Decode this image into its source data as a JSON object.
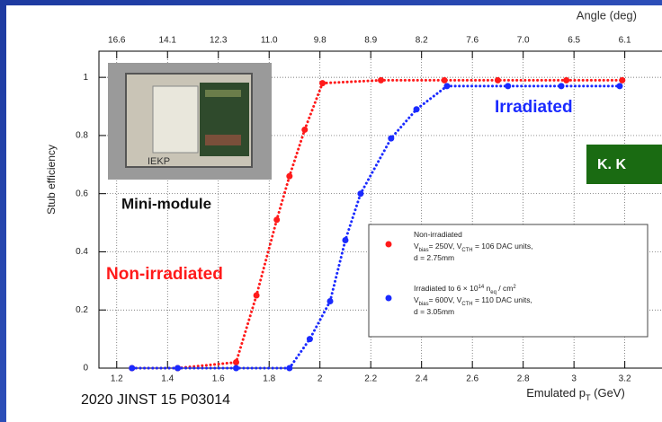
{
  "chart_data": {
    "type": "line",
    "line_style": "dotted",
    "x_label": {
      "segments": [
        {
          "text": "Emulated p"
        },
        {
          "sub": "T"
        },
        {
          "text": " (GeV)"
        }
      ]
    },
    "y_label": "Stub efficiency",
    "x2_label": "Angle (deg)",
    "xlim": [
      1.13,
      3.35
    ],
    "ylim": [
      0,
      1.09
    ],
    "xticks": [
      1.2,
      1.4,
      1.6,
      1.8,
      2,
      2.2,
      2.4,
      2.6,
      2.8,
      3,
      3.2
    ],
    "x2ticks": [
      16.6,
      14.1,
      12.3,
      {
        "value": 11,
        "label": "11.0"
      },
      9.8,
      8.9,
      8.2,
      7.6,
      {
        "value": 7,
        "label": "7.0"
      },
      6.5,
      6.1
    ],
    "yticks": [
      0,
      0.2,
      0.4,
      0.6,
      0.8,
      1
    ],
    "grid": true,
    "series": [
      {
        "name": "Non-irradiated",
        "color": "#ff1a1a",
        "x": [
          1.26,
          1.44,
          1.67,
          1.75,
          1.83,
          1.88,
          1.94,
          2.01,
          2.24,
          2.49,
          2.7,
          2.97,
          3.19
        ],
        "values": [
          0,
          0,
          0.02,
          0.25,
          0.51,
          0.66,
          0.82,
          0.98,
          0.99,
          0.99,
          0.99,
          0.99,
          0.99
        ]
      },
      {
        "name": "Irradiated",
        "color": "#1a2aff",
        "x": [
          1.26,
          1.44,
          1.67,
          1.88,
          1.96,
          2.04,
          2.1,
          2.16,
          2.28,
          2.38,
          2.5,
          2.74,
          2.95,
          3.18
        ],
        "values": [
          0,
          0,
          0,
          0,
          0.1,
          0.23,
          0.44,
          0.6,
          0.79,
          0.89,
          0.97,
          0.97,
          0.97,
          0.97
        ]
      }
    ],
    "legend": [
      {
        "lines": [
          {
            "segments": [
              {
                "text": "Non-irradiated"
              }
            ]
          },
          {
            "segments": [
              {
                "text": "V"
              },
              {
                "sub": "bias"
              },
              {
                "text": "= 250V, V"
              },
              {
                "sub": "CTH"
              },
              {
                "text": " = 106 DAC units,"
              }
            ]
          },
          {
            "segments": [
              {
                "text": "d = 2.75mm"
              }
            ]
          }
        ]
      },
      {
        "lines": [
          {
            "segments": [
              {
                "text": "Irradiated to 6 × 10"
              },
              {
                "sup": "14"
              },
              {
                "text": " n"
              },
              {
                "sub": "eq"
              },
              {
                "text": " / cm"
              },
              {
                "sup": "2"
              }
            ]
          },
          {
            "segments": [
              {
                "text": "V"
              },
              {
                "sub": "bias"
              },
              {
                "text": "= 600V, V"
              },
              {
                "sub": "CTH"
              },
              {
                "text": " = 110 DAC units,"
              }
            ]
          },
          {
            "segments": [
              {
                "text": "d = 3.05mm"
              }
            ]
          }
        ]
      }
    ],
    "annotations": {
      "photo_caption": "Mini-module",
      "photo_tag": "IEKP",
      "badge": "K. K",
      "reference": "2020 JINST 15 P03014"
    }
  }
}
